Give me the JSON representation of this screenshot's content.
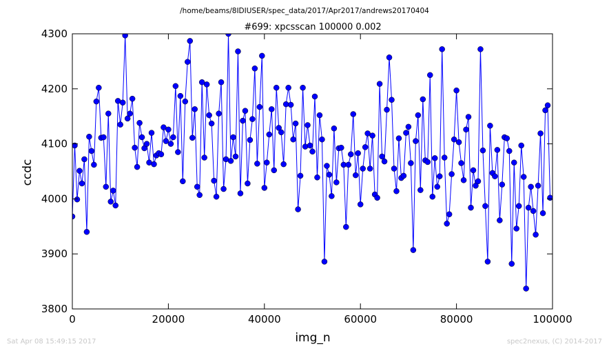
{
  "figure": {
    "path_title": "/home/beams/8IDIUSER/spec_data/2017/Apr2017/andrews20170404",
    "footer_left": "Sat Apr 08 15:49:15 2017",
    "footer_right": "spec2nexus, (C) 2014-2017"
  },
  "chart_data": {
    "type": "line",
    "title": "#699: xpcsscan 100000 0.002",
    "xlabel": "img_n",
    "ylabel": "ccdc",
    "xlim": [
      0,
      100000
    ],
    "ylim": [
      3800,
      4300
    ],
    "x_ticks": [
      "0",
      "20000",
      "40000",
      "60000",
      "80000",
      "100000"
    ],
    "y_ticks": [
      "3800",
      "3900",
      "4000",
      "4100",
      "4200",
      "4300"
    ],
    "grid": false,
    "marker": "circle",
    "color": "#0000ff",
    "series": [
      {
        "x_start": 0,
        "x_step": 500,
        "y": [
          3968,
          4097,
          3999,
          4051,
          4028,
          4072,
          3940,
          4113,
          4087,
          4062,
          4177,
          4202,
          4111,
          4112,
          4022,
          4155,
          3995,
          4015,
          3988,
          4178,
          4135,
          4175,
          4297,
          4146,
          4155,
          4182,
          4093,
          4058,
          4138,
          4112,
          4092,
          4100,
          4066,
          4120,
          4063,
          4079,
          4083,
          4081,
          4130,
          4105,
          4126,
          4100,
          4112,
          4205,
          4085,
          4187,
          4032,
          4177,
          4249,
          4287,
          4111,
          4163,
          4022,
          4007,
          4212,
          4075,
          4208,
          4152,
          4137,
          4033,
          4004,
          4155,
          4212,
          4018,
          4072,
          4300,
          4069,
          4112,
          4077,
          4268,
          4010,
          4142,
          4160,
          4028,
          4107,
          4145,
          4237,
          4064,
          4167,
          4260,
          4020,
          4066,
          4117,
          4163,
          4052,
          4202,
          4129,
          4121,
          4063,
          4172,
          4202,
          4171,
          4108,
          4137,
          3981,
          4042,
          4202,
          4095,
          4134,
          4097,
          4086,
          4186,
          4039,
          4152,
          4108,
          3886,
          4060,
          4044,
          4005,
          4128,
          4030,
          4092,
          4093,
          4062,
          3949,
          4062,
          4081,
          4154,
          4043,
          4083,
          3990,
          4055,
          4094,
          4119,
          4055,
          4115,
          4008,
          4002,
          4209,
          4077,
          4068,
          4162,
          4257,
          4180,
          4055,
          4014,
          4110,
          4038,
          4042,
          4120,
          4131,
          4065,
          3907,
          4105,
          4152,
          4016,
          4181,
          4070,
          4067,
          4225,
          4004,
          4074,
          4022,
          4041,
          4272,
          4075,
          3955,
          3972,
          4045,
          4108,
          4197,
          4103,
          4065,
          4034,
          4126,
          4149,
          3984,
          4052,
          4024,
          4032,
          4272,
          4088,
          3987,
          3886,
          4133,
          4047,
          4041,
          4089,
          3961,
          4026,
          4112,
          4110,
          4087,
          3882,
          4066,
          3946,
          3987,
          4097,
          4040,
          3837,
          3984,
          4022,
          3978,
          3935,
          4024,
          4119,
          3974,
          4161,
          4170,
          4002
        ]
      }
    ]
  }
}
